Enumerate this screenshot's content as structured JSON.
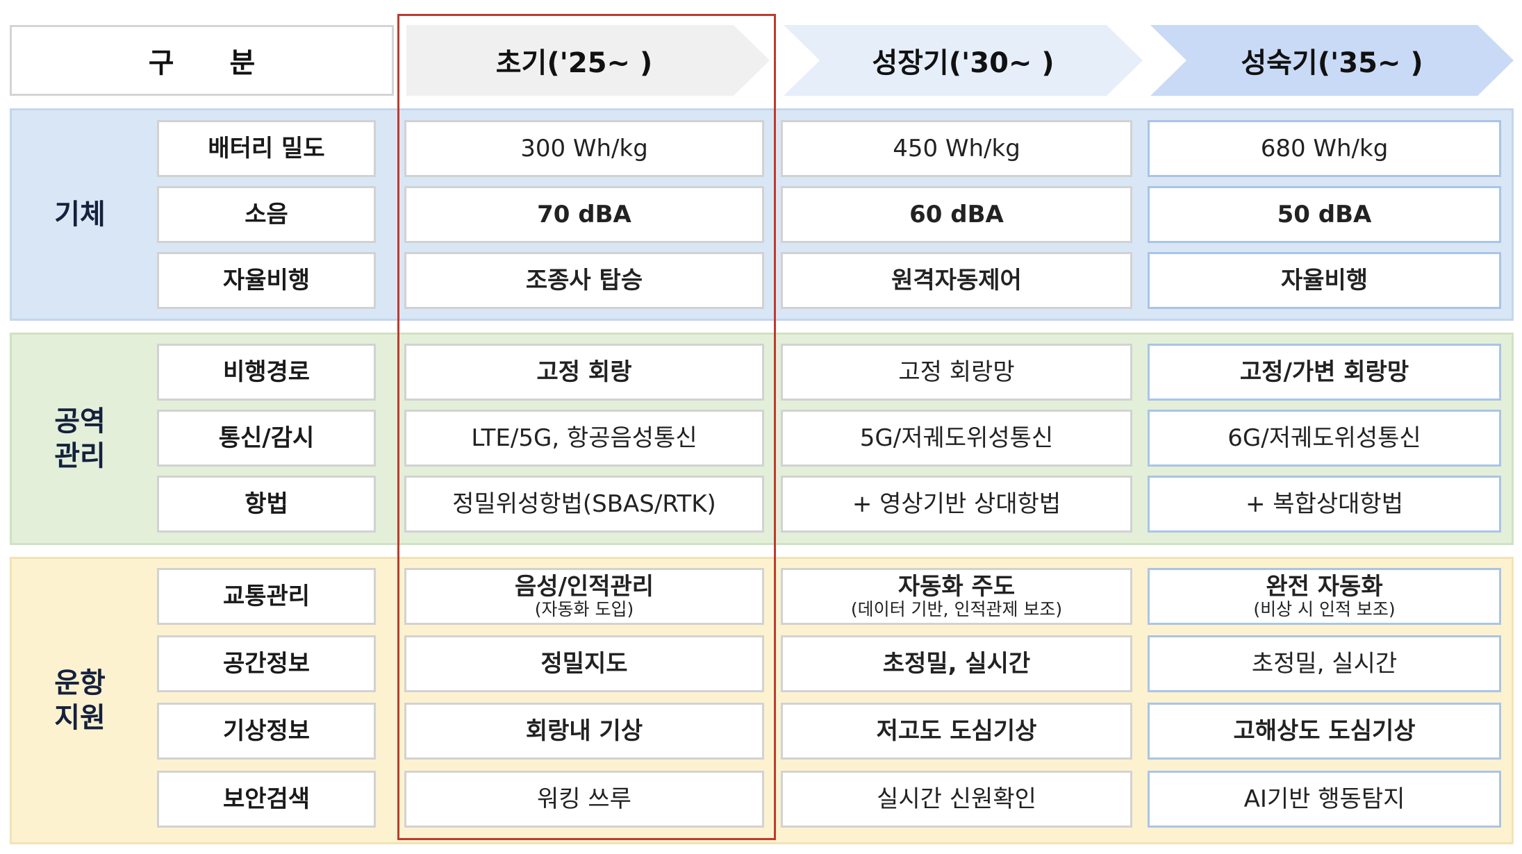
{
  "header": {
    "gubun_1": "구",
    "gubun_2": "분",
    "phase_1": "초기('25~ )",
    "phase_2": "성장기('30~ )",
    "phase_3": "성숙기('35~ )"
  },
  "sections": {
    "airframe": {
      "label": "기체",
      "rows": [
        {
          "label": "배터리 밀도",
          "v1": "300 Wh/kg",
          "v2": "450 Wh/kg",
          "v3": "680 Wh/kg"
        },
        {
          "label": "소음",
          "v1": "70 dBA",
          "v2": "60 dBA",
          "v3": "50 dBA"
        },
        {
          "label": "자율비행",
          "v1": "조종사 탑승",
          "v2": "원격자동제어",
          "v3": "자율비행"
        }
      ]
    },
    "airspace": {
      "label_1": "공역",
      "label_2": "관리",
      "rows": [
        {
          "label": "비행경로",
          "v1": "고정 회랑",
          "v2": "고정 회랑망",
          "v3": "고정/가변 회랑망"
        },
        {
          "label": "통신/감시",
          "v1": "LTE/5G, 항공음성통신",
          "v2": "5G/저궤도위성통신",
          "v3": "6G/저궤도위성통신"
        },
        {
          "label": "항법",
          "v1": "정밀위성항법(SBAS/RTK)",
          "v2": "+ 영상기반 상대항법",
          "v3": "+ 복합상대항법"
        }
      ]
    },
    "operations": {
      "label_1": "운항",
      "label_2": "지원",
      "rows": [
        {
          "label": "교통관리",
          "v1": "음성/인적관리",
          "v1_sub": "(자동화 도입)",
          "v2": "자동화 주도",
          "v2_sub": "(데이터 기반, 인적관제 보조)",
          "v3": "완전 자동화",
          "v3_sub": "(비상 시 인적 보조)"
        },
        {
          "label": "공간정보",
          "v1": "정밀지도",
          "v2": "초정밀, 실시간",
          "v3": "초정밀, 실시간"
        },
        {
          "label": "기상정보",
          "v1": "회랑내 기상",
          "v2": "저고도 도심기상",
          "v3": "고해상도 도심기상"
        },
        {
          "label": "보안검색",
          "v1": "워킹 쓰루",
          "v2": "실시간 신원확인",
          "v3": "AI기반 행동탐지"
        }
      ]
    }
  }
}
